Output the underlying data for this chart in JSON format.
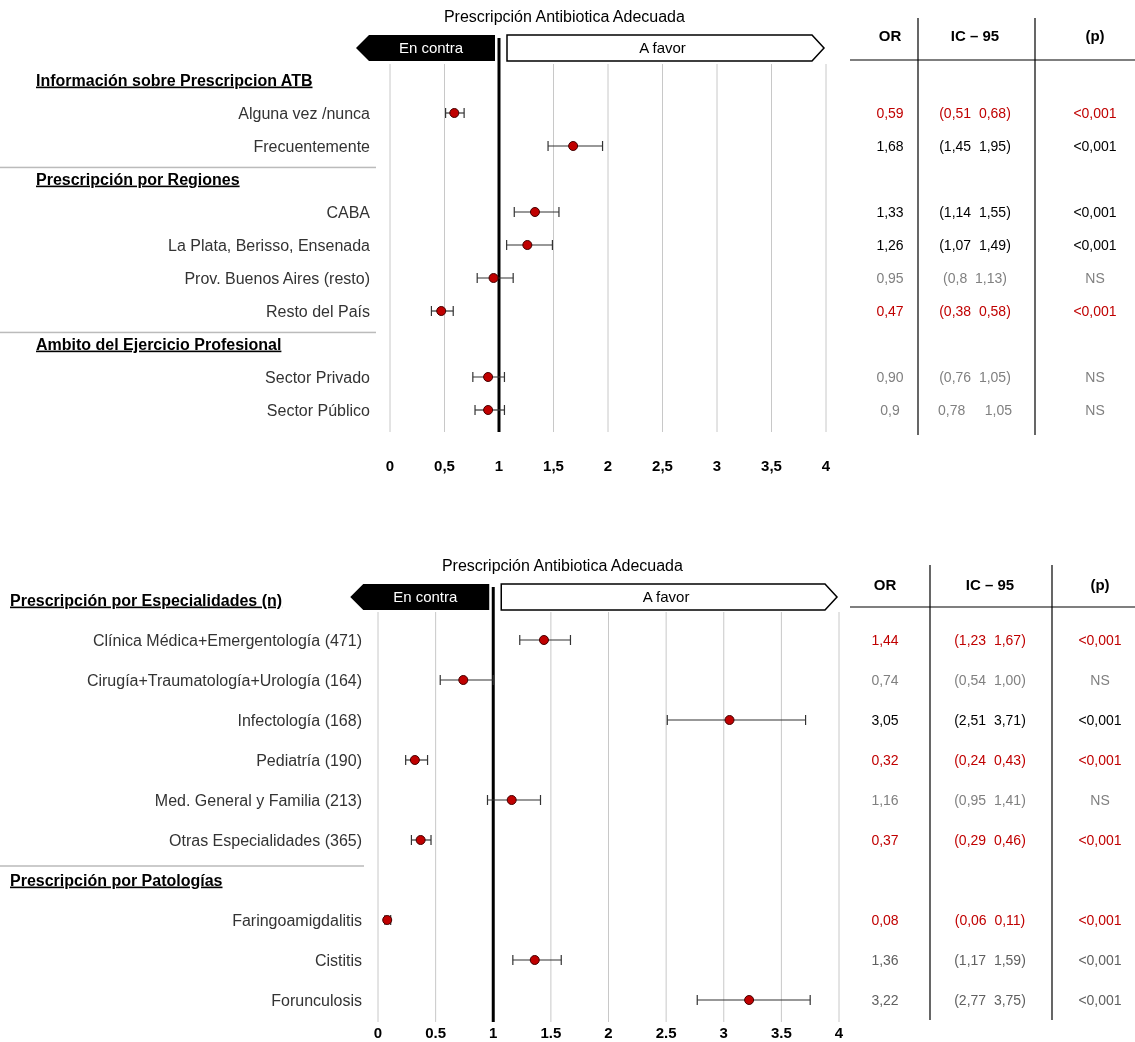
{
  "chart_data": [
    {
      "type": "scatter",
      "orientation": "horizontal",
      "title": "Prescripción Antibiotica Adecuada",
      "marker": "circle",
      "grid": "x",
      "tick_labels": "x",
      "categories": [
        "Información sobre Prescripcion ATB",
        "Alguna vez /nunca",
        "Frecuentemente",
        "Prescripción por Regiones",
        "CABA",
        "La Plata, Berisso, Ensenada",
        "Prov. Buenos Aires (resto)",
        "Resto del País",
        "Ambito del Ejercicio Profesional",
        "Sector Privado",
        "Sector Público"
      ],
      "series": [
        {
          "color": "#c00000",
          "values": [
            null,
            0.59,
            1.68,
            null,
            1.33,
            1.26,
            0.95,
            0.47,
            null,
            0.9,
            0.9
          ],
          "errors": [
            null,
            [
              0.51,
              0.68
            ],
            [
              1.45,
              1.95
            ],
            null,
            [
              1.14,
              1.55
            ],
            [
              1.07,
              1.49
            ],
            [
              0.8,
              1.13
            ],
            [
              0.38,
              0.58
            ],
            null,
            [
              0.76,
              1.05
            ],
            [
              0.78,
              1.05
            ]
          ]
        }
      ],
      "xlim": [
        0,
        4
      ],
      "xticks": [
        0,
        {
          "value": 0.5,
          "label": "0,5"
        },
        1,
        {
          "value": 1.5,
          "label": "1,5"
        },
        2,
        {
          "value": 2.5,
          "label": "2,5"
        },
        3,
        {
          "value": 3.5,
          "label": "3,5"
        },
        4
      ],
      "ref_lines": [
        {
          "axis": "x",
          "value": 1,
          "color": "#000000"
        }
      ],
      "annotations": [
        "En contra",
        "A favor"
      ]
    },
    {
      "type": "other",
      "categories": [
        "OR",
        "IC – 95",
        "(p)"
      ],
      "cell_labels": [
        [
          null,
          null,
          null
        ],
        [
          "0,59",
          "(0,51  0,68)",
          "<0,001"
        ],
        [
          "1,68",
          "(1,45  1,95)",
          "<0,001"
        ],
        [
          null,
          null,
          null
        ],
        [
          "1,33",
          "(1,14  1,55)",
          "<0,001"
        ],
        [
          "1,26",
          "(1,07  1,49)",
          "<0,001"
        ],
        [
          "0,95",
          "(0,8  1,13)",
          "NS"
        ],
        [
          "0,47",
          "(0,38  0,58)",
          "<0,001"
        ],
        [
          null,
          null,
          null
        ],
        [
          "0,90",
          "(0,76  1,05)",
          "NS"
        ],
        [
          "0,9",
          "0,78     1,05",
          "NS"
        ]
      ],
      "colors": [
        null,
        "#c00000",
        "#000000",
        null,
        "#000000",
        "#000000",
        "#808080",
        "#c00000",
        null,
        "#808080",
        "#808080"
      ]
    },
    {
      "type": "scatter",
      "orientation": "horizontal",
      "title": "Prescripción Antibiotica Adecuada",
      "marker": "circle",
      "grid": "x",
      "tick_labels": "x",
      "categories": [
        "Prescripción por Especialidades (n)",
        "Clínica Médica+Emergentología (471)",
        "Cirugía+Traumatología+Urología (164)",
        "Infectología (168)",
        "Pediatría (190)",
        "Med. General y Familia (213)",
        "Otras Especialidades (365)",
        "Prescripción por Patologías",
        "Faringoamigdalitis",
        "Cistitis",
        "Forunculosis"
      ],
      "series": [
        {
          "color": "#c00000",
          "values": [
            null,
            1.44,
            0.74,
            3.05,
            0.32,
            1.16,
            0.37,
            null,
            0.08,
            1.36,
            3.22
          ],
          "errors": [
            null,
            [
              1.23,
              1.67
            ],
            [
              0.54,
              1.0
            ],
            [
              2.51,
              3.71
            ],
            [
              0.24,
              0.43
            ],
            [
              0.95,
              1.41
            ],
            [
              0.29,
              0.46
            ],
            null,
            [
              0.06,
              0.11
            ],
            [
              1.17,
              1.59
            ],
            [
              2.77,
              3.75
            ]
          ]
        }
      ],
      "xlim": [
        0,
        4
      ],
      "xticks": [
        0,
        0.5,
        1,
        1.5,
        2,
        2.5,
        3,
        3.5,
        4
      ],
      "ref_lines": [
        {
          "axis": "x",
          "value": 1,
          "color": "#000000"
        }
      ],
      "annotations": [
        "En contra",
        "A favor"
      ]
    },
    {
      "type": "other",
      "categories": [
        "OR",
        "IC – 95",
        "(p)"
      ],
      "cell_labels": [
        [
          null,
          null,
          null
        ],
        [
          "1,44",
          "(1,23  1,67)",
          "<0,001"
        ],
        [
          "0,74",
          "(0,54  1,00)",
          "NS"
        ],
        [
          "3,05",
          "(2,51  3,71)",
          "<0,001"
        ],
        [
          "0,32",
          "(0,24  0,43)",
          "<0,001"
        ],
        [
          "1,16",
          "(0,95  1,41)",
          "NS"
        ],
        [
          "0,37",
          "(0,29  0,46)",
          "<0,001"
        ],
        [
          null,
          null,
          null
        ],
        [
          "0,08",
          "(0,06  0,11)",
          "<0,001"
        ],
        [
          "1,36",
          "(1,17  1,59)",
          "<0,001"
        ],
        [
          "3,22",
          "(2,77  3,75)",
          "<0,001"
        ]
      ],
      "colors": [
        null,
        "#c00000",
        "#808080",
        "#000000",
        "#c00000",
        "#808080",
        "#c00000",
        null,
        "#c00000",
        "#606060",
        "#606060"
      ]
    }
  ]
}
